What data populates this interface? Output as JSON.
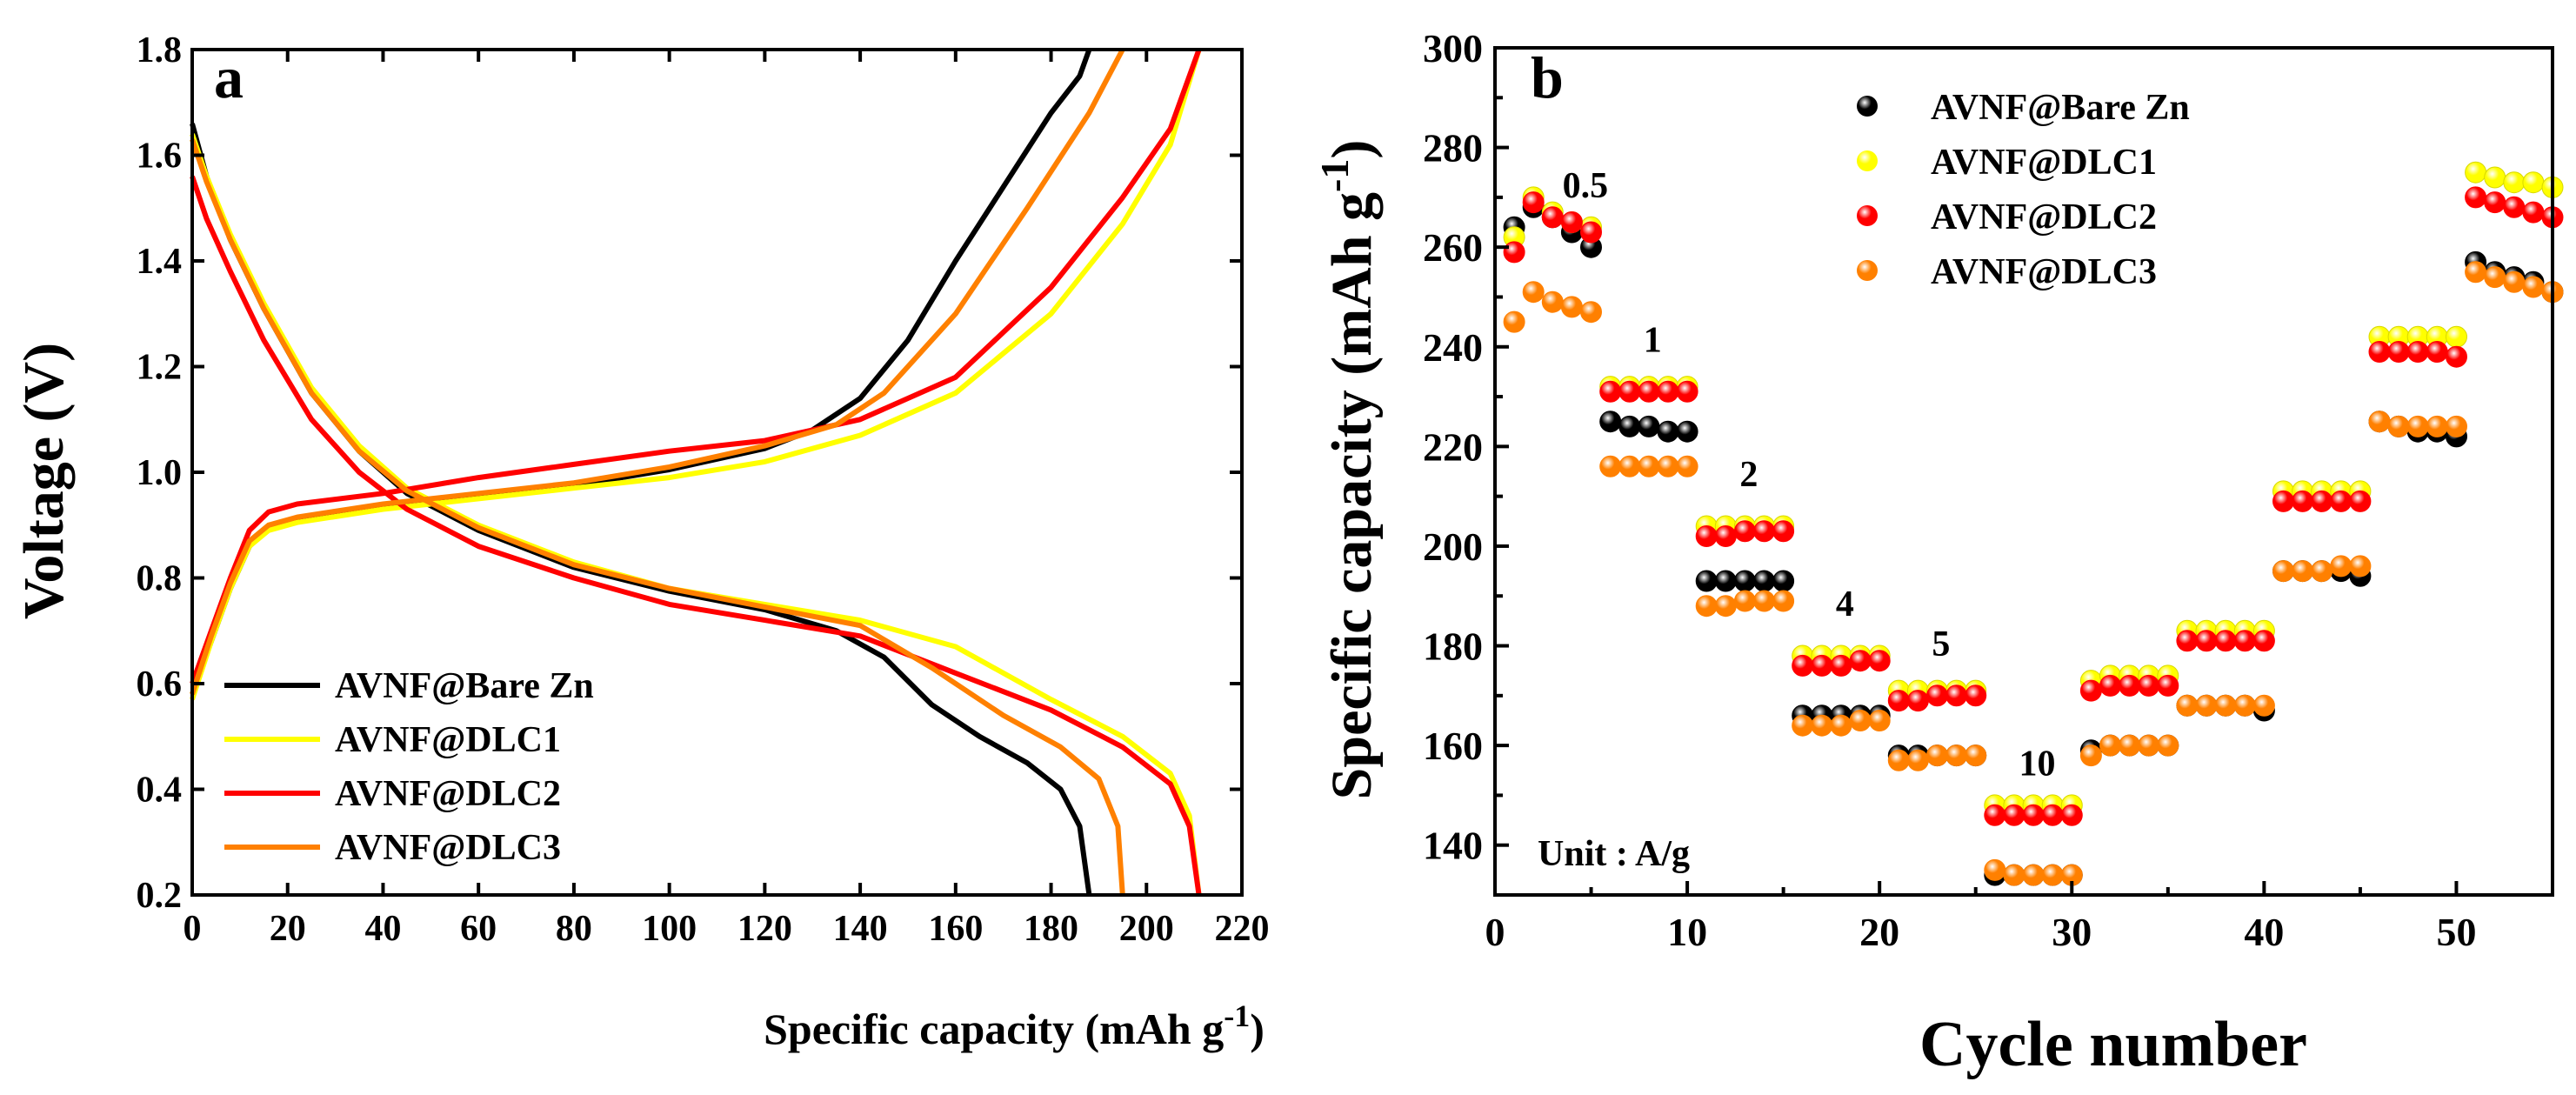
{
  "chart_data": [
    {
      "type": "line",
      "panel_label": "a",
      "xlabel": "Specific capacity (mAh g",
      "xlabel_sup": "-1",
      "xlabel_end": ")",
      "ylabel": "Voltage (V)",
      "xlim": [
        0,
        220
      ],
      "ylim": [
        0.2,
        1.8
      ],
      "xticks": [
        0,
        20,
        40,
        60,
        80,
        100,
        120,
        140,
        160,
        180,
        200,
        220
      ],
      "yticks": [
        0.2,
        0.4,
        0.6,
        0.8,
        1.0,
        1.2,
        1.4,
        1.6,
        1.8
      ],
      "ytick_labels": [
        "0.2",
        "0.4",
        "0.6",
        "0.8",
        "1.0",
        "1.2",
        "1.4",
        "1.6",
        "1.8"
      ],
      "legend_position": "bottom-left",
      "series": [
        {
          "name": "AVNF@Bare Zn",
          "color": "#000000",
          "charge": [
            [
              0,
              0.58
            ],
            [
              4,
              0.68
            ],
            [
              8,
              0.78
            ],
            [
              12,
              0.86
            ],
            [
              16,
              0.895
            ],
            [
              22,
              0.91
            ],
            [
              40,
              0.935
            ],
            [
              60,
              0.955
            ],
            [
              80,
              0.975
            ],
            [
              100,
              1.005
            ],
            [
              120,
              1.045
            ],
            [
              130,
              1.08
            ],
            [
              140,
              1.14
            ],
            [
              150,
              1.25
            ],
            [
              160,
              1.4
            ],
            [
              170,
              1.54
            ],
            [
              180,
              1.68
            ],
            [
              186,
              1.75
            ],
            [
              188,
              1.8
            ]
          ],
          "discharge": [
            [
              0,
              1.66
            ],
            [
              3,
              1.56
            ],
            [
              8,
              1.44
            ],
            [
              15,
              1.31
            ],
            [
              25,
              1.15
            ],
            [
              35,
              1.04
            ],
            [
              45,
              0.96
            ],
            [
              60,
              0.89
            ],
            [
              80,
              0.82
            ],
            [
              100,
              0.775
            ],
            [
              120,
              0.74
            ],
            [
              135,
              0.7
            ],
            [
              145,
              0.65
            ],
            [
              155,
              0.56
            ],
            [
              165,
              0.5
            ],
            [
              175,
              0.45
            ],
            [
              182,
              0.4
            ],
            [
              186,
              0.33
            ],
            [
              188,
              0.2
            ]
          ]
        },
        {
          "name": "AVNF@DLC1",
          "color": "#ffff00",
          "charge": [
            [
              0,
              0.57
            ],
            [
              4,
              0.68
            ],
            [
              8,
              0.78
            ],
            [
              12,
              0.86
            ],
            [
              16,
              0.89
            ],
            [
              22,
              0.905
            ],
            [
              40,
              0.93
            ],
            [
              60,
              0.95
            ],
            [
              80,
              0.97
            ],
            [
              100,
              0.99
            ],
            [
              120,
              1.02
            ],
            [
              140,
              1.07
            ],
            [
              160,
              1.15
            ],
            [
              180,
              1.3
            ],
            [
              195,
              1.47
            ],
            [
              205,
              1.62
            ],
            [
              211,
              1.8
            ]
          ],
          "discharge": [
            [
              0,
              1.64
            ],
            [
              3,
              1.56
            ],
            [
              8,
              1.45
            ],
            [
              15,
              1.32
            ],
            [
              25,
              1.16
            ],
            [
              35,
              1.05
            ],
            [
              45,
              0.97
            ],
            [
              60,
              0.9
            ],
            [
              80,
              0.83
            ],
            [
              100,
              0.78
            ],
            [
              120,
              0.75
            ],
            [
              140,
              0.72
            ],
            [
              160,
              0.67
            ],
            [
              180,
              0.57
            ],
            [
              195,
              0.5
            ],
            [
              205,
              0.43
            ],
            [
              209,
              0.35
            ],
            [
              211,
              0.2
            ]
          ]
        },
        {
          "name": "AVNF@DLC2",
          "color": "#ff0000",
          "charge": [
            [
              0,
              0.6
            ],
            [
              4,
              0.7
            ],
            [
              8,
              0.8
            ],
            [
              12,
              0.89
            ],
            [
              16,
              0.925
            ],
            [
              22,
              0.94
            ],
            [
              40,
              0.96
            ],
            [
              60,
              0.99
            ],
            [
              80,
              1.015
            ],
            [
              100,
              1.04
            ],
            [
              120,
              1.06
            ],
            [
              140,
              1.1
            ],
            [
              160,
              1.18
            ],
            [
              180,
              1.35
            ],
            [
              195,
              1.52
            ],
            [
              205,
              1.65
            ],
            [
              211,
              1.8
            ]
          ],
          "discharge": [
            [
              0,
              1.56
            ],
            [
              3,
              1.48
            ],
            [
              8,
              1.38
            ],
            [
              15,
              1.25
            ],
            [
              25,
              1.1
            ],
            [
              35,
              1.0
            ],
            [
              45,
              0.93
            ],
            [
              60,
              0.86
            ],
            [
              80,
              0.8
            ],
            [
              100,
              0.75
            ],
            [
              120,
              0.72
            ],
            [
              140,
              0.69
            ],
            [
              160,
              0.62
            ],
            [
              180,
              0.55
            ],
            [
              195,
              0.48
            ],
            [
              205,
              0.41
            ],
            [
              209,
              0.33
            ],
            [
              211,
              0.2
            ]
          ]
        },
        {
          "name": "AVNF@DLC3",
          "color": "#ff8000",
          "charge": [
            [
              0,
              0.58
            ],
            [
              4,
              0.69
            ],
            [
              8,
              0.79
            ],
            [
              12,
              0.87
            ],
            [
              16,
              0.9
            ],
            [
              22,
              0.915
            ],
            [
              40,
              0.94
            ],
            [
              60,
              0.96
            ],
            [
              80,
              0.98
            ],
            [
              100,
              1.01
            ],
            [
              120,
              1.05
            ],
            [
              135,
              1.09
            ],
            [
              145,
              1.15
            ],
            [
              160,
              1.3
            ],
            [
              175,
              1.5
            ],
            [
              188,
              1.68
            ],
            [
              195,
              1.8
            ]
          ],
          "discharge": [
            [
              0,
              1.63
            ],
            [
              3,
              1.55
            ],
            [
              8,
              1.44
            ],
            [
              15,
              1.31
            ],
            [
              25,
              1.15
            ],
            [
              35,
              1.04
            ],
            [
              45,
              0.965
            ],
            [
              60,
              0.895
            ],
            [
              80,
              0.825
            ],
            [
              100,
              0.78
            ],
            [
              120,
              0.745
            ],
            [
              140,
              0.71
            ],
            [
              155,
              0.63
            ],
            [
              170,
              0.54
            ],
            [
              182,
              0.48
            ],
            [
              190,
              0.42
            ],
            [
              194,
              0.33
            ],
            [
              195,
              0.2
            ]
          ]
        }
      ]
    },
    {
      "type": "scatter",
      "panel_label": "b",
      "xlabel": "Cycle number",
      "ylabel": "Specific capacity (mAh g",
      "ylabel_sup": "-1",
      "ylabel_end": ")",
      "xlim": [
        0,
        55
      ],
      "ylim": [
        130,
        300
      ],
      "xticks": [
        0,
        10,
        20,
        30,
        40,
        50
      ],
      "yticks": [
        140,
        160,
        180,
        200,
        220,
        240,
        260,
        280,
        300
      ],
      "legend_position": "top-center",
      "annotation": "Unit : A/g",
      "rate_labels": [
        {
          "text": "0.5",
          "x": 4.7,
          "y": 270
        },
        {
          "text": "1",
          "x": 8.2,
          "y": 239
        },
        {
          "text": "2",
          "x": 13.2,
          "y": 212
        },
        {
          "text": "4",
          "x": 18.2,
          "y": 186
        },
        {
          "text": "5",
          "x": 23.2,
          "y": 178
        },
        {
          "text": "10",
          "x": 28.2,
          "y": 154
        }
      ],
      "series": [
        {
          "name": "AVNF@Bare Zn",
          "color": "#000000",
          "x": [
            1,
            2,
            3,
            4,
            5,
            6,
            7,
            8,
            9,
            10,
            11,
            12,
            13,
            14,
            15,
            16,
            17,
            18,
            19,
            20,
            21,
            22,
            23,
            24,
            25,
            26,
            27,
            28,
            29,
            30,
            31,
            32,
            33,
            34,
            35,
            36,
            37,
            38,
            39,
            40,
            41,
            42,
            43,
            44,
            45,
            46,
            47,
            48,
            49,
            50,
            51,
            52,
            53,
            54,
            55
          ],
          "values": [
            264,
            268,
            266,
            263,
            260,
            225,
            224,
            224,
            223,
            223,
            193,
            193,
            193,
            193,
            193,
            166,
            166,
            166,
            166,
            166,
            158,
            158,
            158,
            158,
            158,
            134,
            134,
            134,
            134,
            134,
            159,
            160,
            160,
            160,
            160,
            168,
            168,
            168,
            168,
            167,
            195,
            195,
            195,
            195,
            194,
            225,
            224,
            223,
            223,
            222,
            257,
            255,
            254,
            253,
            251
          ]
        },
        {
          "name": "AVNF@DLC1",
          "color": "#ffff00",
          "x": [
            1,
            2,
            3,
            4,
            5,
            6,
            7,
            8,
            9,
            10,
            11,
            12,
            13,
            14,
            15,
            16,
            17,
            18,
            19,
            20,
            21,
            22,
            23,
            24,
            25,
            26,
            27,
            28,
            29,
            30,
            31,
            32,
            33,
            34,
            35,
            36,
            37,
            38,
            39,
            40,
            41,
            42,
            43,
            44,
            45,
            46,
            47,
            48,
            49,
            50,
            51,
            52,
            53,
            54,
            55
          ],
          "values": [
            262,
            270,
            267,
            265,
            264,
            232,
            232,
            232,
            232,
            232,
            204,
            204,
            204,
            204,
            204,
            178,
            178,
            178,
            178,
            178,
            171,
            171,
            171,
            171,
            171,
            148,
            148,
            148,
            148,
            148,
            173,
            174,
            174,
            174,
            174,
            183,
            183,
            183,
            183,
            183,
            211,
            211,
            211,
            211,
            211,
            242,
            242,
            242,
            242,
            242,
            275,
            274,
            273,
            273,
            272
          ]
        },
        {
          "name": "AVNF@DLC2",
          "color": "#ff0000",
          "x": [
            1,
            2,
            3,
            4,
            5,
            6,
            7,
            8,
            9,
            10,
            11,
            12,
            13,
            14,
            15,
            16,
            17,
            18,
            19,
            20,
            21,
            22,
            23,
            24,
            25,
            26,
            27,
            28,
            29,
            30,
            31,
            32,
            33,
            34,
            35,
            36,
            37,
            38,
            39,
            40,
            41,
            42,
            43,
            44,
            45,
            46,
            47,
            48,
            49,
            50,
            51,
            52,
            53,
            54,
            55
          ],
          "values": [
            259,
            269,
            266,
            265,
            263,
            231,
            231,
            231,
            231,
            231,
            202,
            202,
            203,
            203,
            203,
            176,
            176,
            176,
            177,
            177,
            169,
            169,
            170,
            170,
            170,
            146,
            146,
            146,
            146,
            146,
            171,
            172,
            172,
            172,
            172,
            181,
            181,
            181,
            181,
            181,
            209,
            209,
            209,
            209,
            209,
            239,
            239,
            239,
            239,
            238,
            270,
            269,
            268,
            267,
            266
          ]
        },
        {
          "name": "AVNF@DLC3",
          "color": "#ff8000",
          "x": [
            1,
            2,
            3,
            4,
            5,
            6,
            7,
            8,
            9,
            10,
            11,
            12,
            13,
            14,
            15,
            16,
            17,
            18,
            19,
            20,
            21,
            22,
            23,
            24,
            25,
            26,
            27,
            28,
            29,
            30,
            31,
            32,
            33,
            34,
            35,
            36,
            37,
            38,
            39,
            40,
            41,
            42,
            43,
            44,
            45,
            46,
            47,
            48,
            49,
            50,
            51,
            52,
            53,
            54,
            55
          ],
          "values": [
            245,
            251,
            249,
            248,
            247,
            216,
            216,
            216,
            216,
            216,
            188,
            188,
            189,
            189,
            189,
            164,
            164,
            164,
            165,
            165,
            157,
            157,
            158,
            158,
            158,
            135,
            134,
            134,
            134,
            134,
            158,
            160,
            160,
            160,
            160,
            168,
            168,
            168,
            168,
            168,
            195,
            195,
            195,
            196,
            196,
            225,
            224,
            224,
            224,
            224,
            255,
            254,
            253,
            252,
            251
          ]
        }
      ]
    }
  ]
}
